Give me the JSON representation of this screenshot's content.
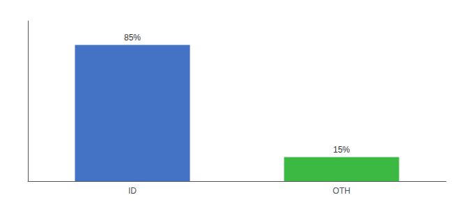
{
  "chart_data": {
    "type": "bar",
    "categories": [
      "ID",
      "OTH"
    ],
    "values": [
      85,
      15
    ],
    "value_labels": [
      "85%",
      "15%"
    ],
    "colors": [
      "#4472c4",
      "#3cb943"
    ],
    "data_labels": true,
    "ylim": [
      0,
      100
    ],
    "yticks": [],
    "tick_labels": "x",
    "grid": false
  }
}
